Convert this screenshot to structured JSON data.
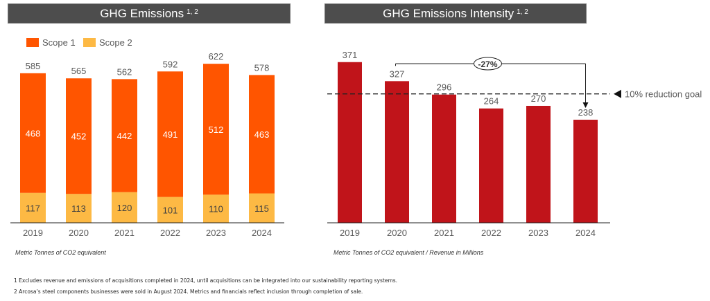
{
  "chart_data": [
    {
      "type": "bar",
      "stacked": true,
      "title": "GHG Emissions",
      "title_superscript": "1, 2",
      "categories": [
        "2019",
        "2020",
        "2021",
        "2022",
        "2023",
        "2024"
      ],
      "series": [
        {
          "name": "Scope 1",
          "color": "#ff5500",
          "values": [
            468,
            452,
            442,
            491,
            512,
            463
          ]
        },
        {
          "name": "Scope 2",
          "color": "#fdb944",
          "values": [
            117,
            113,
            120,
            101,
            110,
            115
          ]
        }
      ],
      "totals": [
        585,
        565,
        562,
        592,
        622,
        578
      ],
      "legend_position": "top-left",
      "unit_note": "Metric Tonnes of CO2 equivalent",
      "ylim": [
        0,
        650
      ]
    },
    {
      "type": "bar",
      "title": "GHG Emissions Intensity",
      "title_superscript": "1, 2",
      "categories": [
        "2019",
        "2020",
        "2021",
        "2022",
        "2023",
        "2024"
      ],
      "values": [
        371,
        327,
        296,
        264,
        270,
        238
      ],
      "color": "#c0141a",
      "reference_line": {
        "value": 296,
        "label": "10% reduction goal",
        "style": "dashed"
      },
      "annotation": {
        "from": "2020",
        "to": "2024",
        "label": "-27%"
      },
      "unit_note": "Metric Tonnes of CO2 equivalent / Revenue in Millions",
      "ylim": [
        0,
        400
      ]
    }
  ],
  "footnotes": [
    "1 Excludes revenue and emissions of acquisitions completed in 2024, until acquisitions can be integrated into our sustainability reporting systems.",
    "2 Arcosa’s steel components businesses were sold in August 2024. Metrics and financials reflect inclusion through completion of sale."
  ]
}
